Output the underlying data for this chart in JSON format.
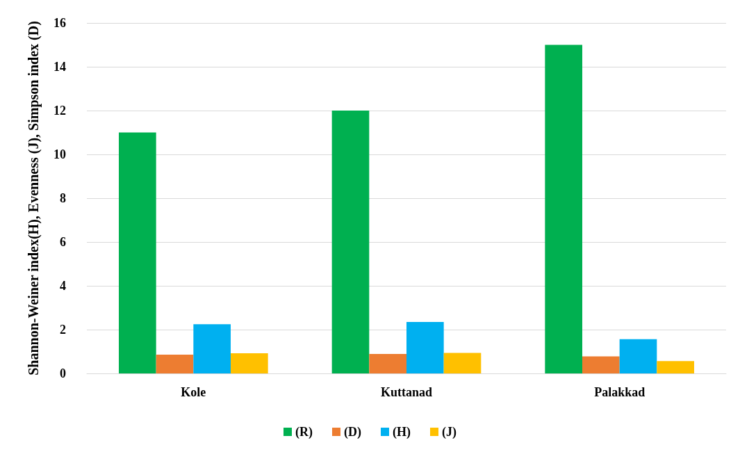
{
  "chart_data": {
    "type": "bar",
    "ylabel": "Shannon-Weiner index(H), Evenness (J), Simpson index (D)",
    "categories": [
      "Kole",
      "Kuttanad",
      "Palakkad"
    ],
    "series": [
      {
        "name": "(R)",
        "color": "#00b050",
        "values": [
          11,
          12,
          15
        ]
      },
      {
        "name": "(D)",
        "color": "#ed7d31",
        "values": [
          0.86,
          0.89,
          0.78
        ]
      },
      {
        "name": "(H)",
        "color": "#00b0f0",
        "values": [
          2.25,
          2.35,
          1.56
        ]
      },
      {
        "name": "(J)",
        "color": "#ffc000",
        "values": [
          0.92,
          0.94,
          0.56
        ]
      }
    ],
    "ylim": [
      0,
      16
    ],
    "yticks": [
      0,
      2,
      4,
      6,
      8,
      10,
      12,
      14,
      16
    ],
    "grid": "y",
    "legend": "bottom"
  }
}
